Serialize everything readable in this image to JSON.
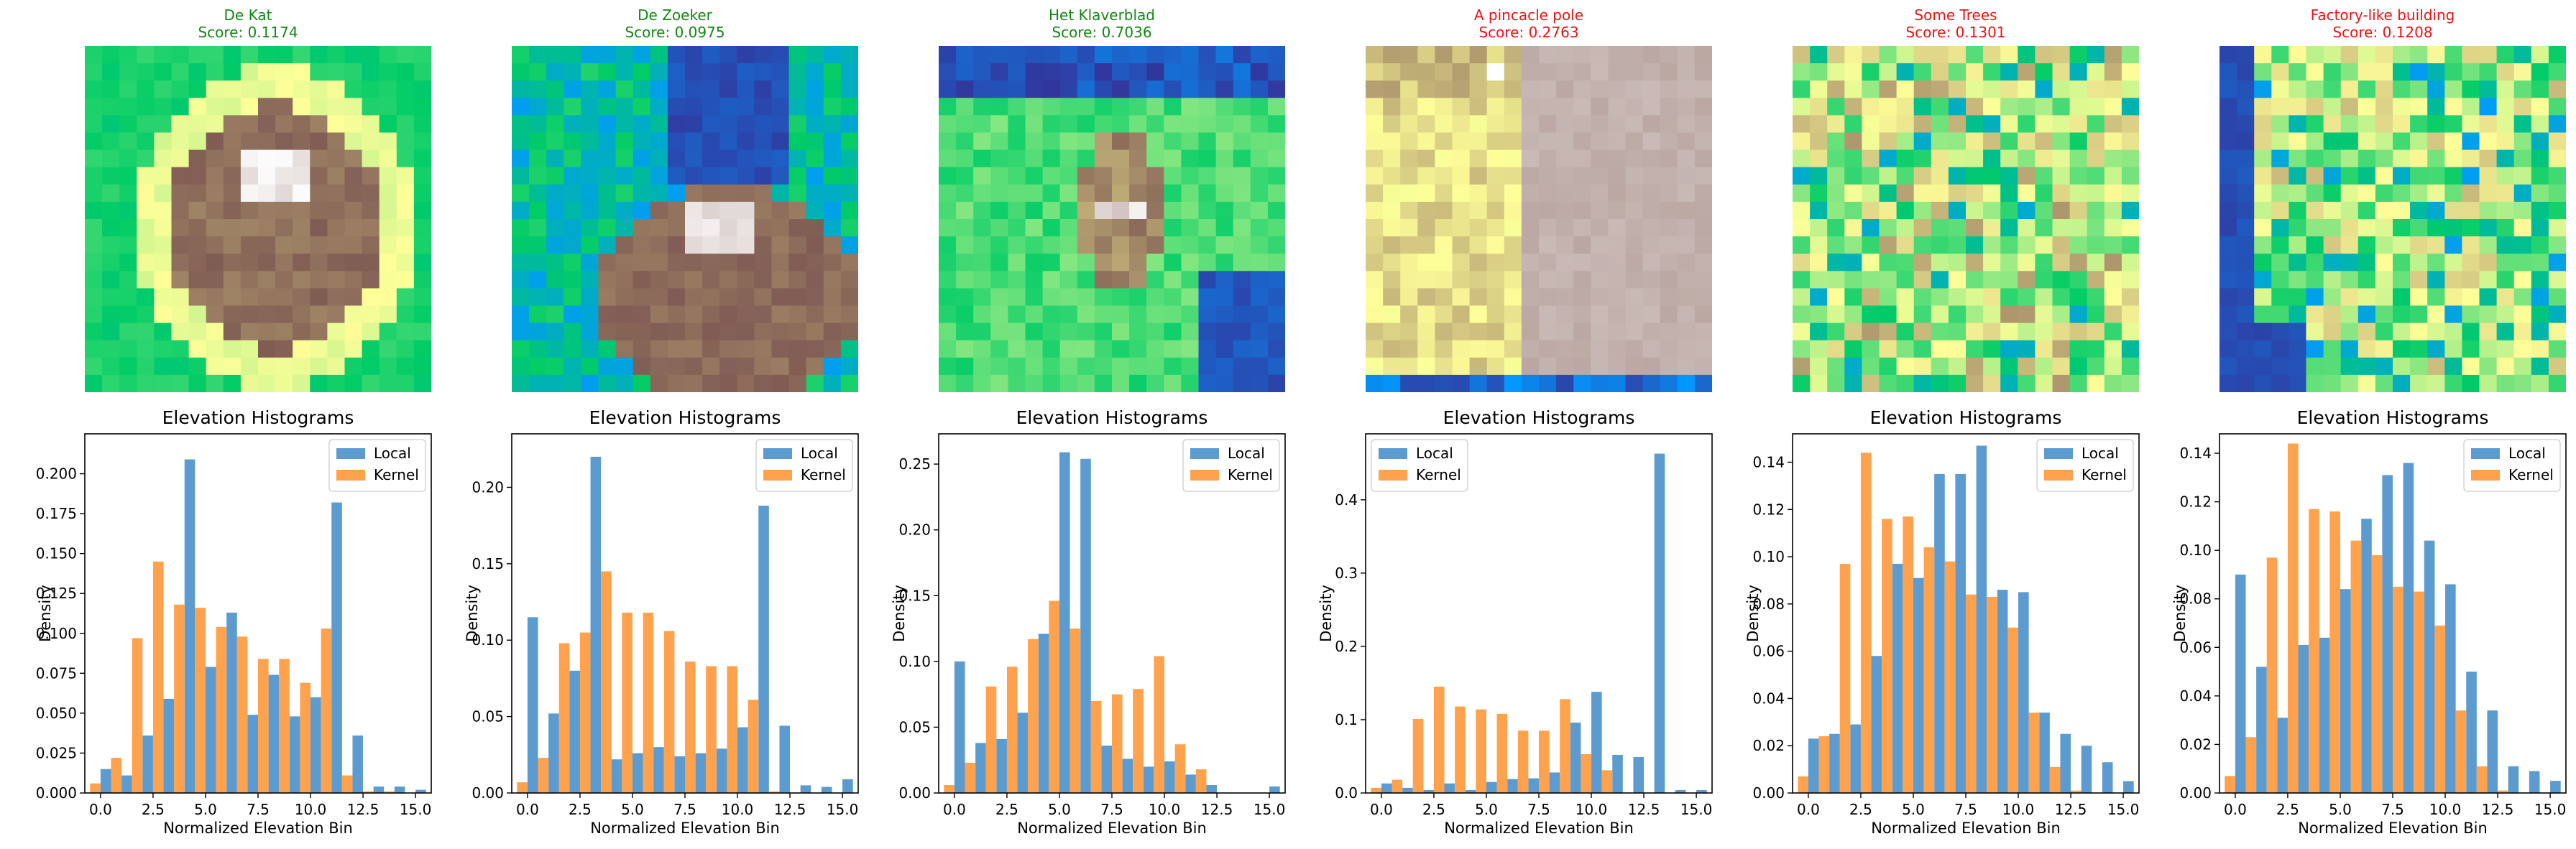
{
  "colors": {
    "good": "#118811",
    "bad": "#ee1111",
    "local": "#5b9bd0",
    "kernel": "#ffa24e"
  },
  "panels": [
    {
      "name": "De Kat",
      "score_label": "Score: 0.1174",
      "status": "good"
    },
    {
      "name": "De Zoeker",
      "score_label": "Score: 0.0975",
      "status": "good"
    },
    {
      "name": "Het Klaverblad",
      "score_label": "Score: 0.7036",
      "status": "good"
    },
    {
      "name": "A pincacle pole",
      "score_label": "Score: 0.2763",
      "status": "bad"
    },
    {
      "name": "Some Trees",
      "score_label": "Score: 0.1301",
      "status": "bad"
    },
    {
      "name": "Factory-like building",
      "score_label": "Score: 0.1208",
      "status": "bad"
    }
  ],
  "chart_data": [
    {
      "type": "bar",
      "title": "Elevation Histograms",
      "xlabel": "Normalized Elevation Bin",
      "ylabel": "Density",
      "x": [
        0,
        1,
        2,
        3,
        4,
        5,
        6,
        7,
        8,
        9,
        10,
        11,
        12,
        13,
        14,
        15
      ],
      "xticks": [
        "0.0",
        "2.5",
        "5.0",
        "7.5",
        "10.0",
        "12.5",
        "15.0"
      ],
      "yticks": [
        "0.000",
        "0.025",
        "0.050",
        "0.075",
        "0.100",
        "0.125",
        "0.150",
        "0.175",
        "0.200"
      ],
      "ylim": [
        0,
        0.225
      ],
      "legend": "top-right",
      "series": [
        {
          "name": "Local",
          "values": [
            0.015,
            0.011,
            0.036,
            0.059,
            0.209,
            0.079,
            0.113,
            0.049,
            0.074,
            0.048,
            0.06,
            0.182,
            0.036,
            0.004,
            0.004,
            0.002
          ]
        },
        {
          "name": "Kernel",
          "values": [
            0.006,
            0.022,
            0.097,
            0.145,
            0.118,
            0.116,
            0.104,
            0.098,
            0.084,
            0.084,
            0.069,
            0.103,
            0.011,
            0.001,
            0.001,
            0.0
          ]
        }
      ]
    },
    {
      "type": "bar",
      "title": "Elevation Histograms",
      "xlabel": "Normalized Elevation Bin",
      "ylabel": "Density",
      "x": [
        0,
        1,
        2,
        3,
        4,
        5,
        6,
        7,
        8,
        9,
        10,
        11,
        12,
        13,
        14,
        15
      ],
      "xticks": [
        "0.0",
        "2.5",
        "5.0",
        "7.5",
        "10.0",
        "12.5",
        "15.0"
      ],
      "yticks": [
        "0.00",
        "0.05",
        "0.10",
        "0.15",
        "0.20"
      ],
      "ylim": [
        0,
        0.235
      ],
      "legend": "top-right",
      "series": [
        {
          "name": "Local",
          "values": [
            0.115,
            0.052,
            0.08,
            0.22,
            0.022,
            0.026,
            0.03,
            0.024,
            0.026,
            0.029,
            0.043,
            0.188,
            0.044,
            0.005,
            0.004,
            0.009
          ]
        },
        {
          "name": "Kernel",
          "values": [
            0.007,
            0.023,
            0.098,
            0.105,
            0.145,
            0.118,
            0.118,
            0.106,
            0.086,
            0.083,
            0.083,
            0.061,
            0.001,
            0.0,
            0.0,
            0.0
          ]
        }
      ]
    },
    {
      "type": "bar",
      "title": "Elevation Histograms",
      "xlabel": "Normalized Elevation Bin",
      "ylabel": "Density",
      "x": [
        0,
        1,
        2,
        3,
        4,
        5,
        6,
        7,
        8,
        9,
        10,
        11,
        12,
        13,
        14,
        15
      ],
      "xticks": [
        "0.0",
        "2.5",
        "5.0",
        "7.5",
        "10.0",
        "12.5",
        "15.0"
      ],
      "yticks": [
        "0.00",
        "0.05",
        "0.10",
        "0.15",
        "0.20",
        "0.25"
      ],
      "ylim": [
        0,
        0.273
      ],
      "legend": "top-right",
      "series": [
        {
          "name": "Local",
          "values": [
            0.1,
            0.038,
            0.041,
            0.061,
            0.121,
            0.259,
            0.254,
            0.036,
            0.026,
            0.02,
            0.024,
            0.014,
            0.006,
            0.0,
            0.0,
            0.005
          ]
        },
        {
          "name": "Kernel",
          "values": [
            0.006,
            0.023,
            0.081,
            0.096,
            0.117,
            0.146,
            0.125,
            0.07,
            0.075,
            0.079,
            0.104,
            0.037,
            0.018,
            0.0,
            0.0,
            0.0
          ]
        }
      ]
    },
    {
      "type": "bar",
      "title": "Elevation Histograms",
      "xlabel": "Normalized Elevation Bin",
      "ylabel": "Density",
      "x": [
        0,
        1,
        2,
        3,
        4,
        5,
        6,
        7,
        8,
        9,
        10,
        11,
        12,
        13,
        14,
        15
      ],
      "xticks": [
        "0.0",
        "2.5",
        "5.0",
        "7.5",
        "10.0",
        "12.5",
        "15.0"
      ],
      "yticks": [
        "0.0",
        "0.1",
        "0.2",
        "0.3",
        "0.4"
      ],
      "ylim": [
        0,
        0.49
      ],
      "legend": "top-left",
      "series": [
        {
          "name": "Local",
          "values": [
            0.013,
            0.007,
            0.004,
            0.013,
            0.004,
            0.015,
            0.019,
            0.02,
            0.028,
            0.096,
            0.138,
            0.052,
            0.049,
            0.463,
            0.004,
            0.004
          ]
        },
        {
          "name": "Kernel",
          "values": [
            0.007,
            0.018,
            0.101,
            0.145,
            0.118,
            0.114,
            0.108,
            0.085,
            0.085,
            0.128,
            0.053,
            0.031,
            0.0,
            0.0,
            0.0,
            0.0
          ]
        }
      ]
    },
    {
      "type": "bar",
      "title": "Elevation Histograms",
      "xlabel": "Normalized Elevation Bin",
      "ylabel": "Density",
      "x": [
        0,
        1,
        2,
        3,
        4,
        5,
        6,
        7,
        8,
        9,
        10,
        11,
        12,
        13,
        14,
        15
      ],
      "xticks": [
        "0.0",
        "2.5",
        "5.0",
        "7.5",
        "10.0",
        "12.5",
        "15.0"
      ],
      "yticks": [
        "0.00",
        "0.02",
        "0.04",
        "0.06",
        "0.08",
        "0.10",
        "0.12",
        "0.14"
      ],
      "ylim": [
        0,
        0.152
      ],
      "legend": "top-right",
      "series": [
        {
          "name": "Local",
          "values": [
            0.023,
            0.025,
            0.029,
            0.058,
            0.097,
            0.091,
            0.135,
            0.135,
            0.147,
            0.086,
            0.085,
            0.034,
            0.025,
            0.02,
            0.013,
            0.005
          ]
        },
        {
          "name": "Kernel",
          "values": [
            0.007,
            0.024,
            0.097,
            0.144,
            0.116,
            0.117,
            0.104,
            0.098,
            0.084,
            0.083,
            0.07,
            0.034,
            0.011,
            0.001,
            0.0,
            0.0
          ]
        }
      ]
    },
    {
      "type": "bar",
      "title": "Elevation Histograms",
      "xlabel": "Normalized Elevation Bin",
      "ylabel": "Density",
      "x": [
        0,
        1,
        2,
        3,
        4,
        5,
        6,
        7,
        8,
        9,
        10,
        11,
        12,
        13,
        14,
        15
      ],
      "xticks": [
        "0.0",
        "2.5",
        "5.0",
        "7.5",
        "10.0",
        "12.5",
        "15.0"
      ],
      "yticks": [
        "0.00",
        "0.02",
        "0.04",
        "0.06",
        "0.08",
        "0.10",
        "0.12",
        "0.14"
      ],
      "ylim": [
        0,
        0.148
      ],
      "legend": "top-right",
      "series": [
        {
          "name": "Local",
          "values": [
            0.09,
            0.052,
            0.031,
            0.061,
            0.064,
            0.084,
            0.113,
            0.131,
            0.136,
            0.104,
            0.086,
            0.05,
            0.034,
            0.011,
            0.009,
            0.005
          ]
        },
        {
          "name": "Kernel",
          "values": [
            0.007,
            0.023,
            0.097,
            0.144,
            0.117,
            0.116,
            0.104,
            0.098,
            0.085,
            0.083,
            0.069,
            0.034,
            0.011,
            0.001,
            0.0,
            0.0
          ]
        }
      ]
    }
  ]
}
